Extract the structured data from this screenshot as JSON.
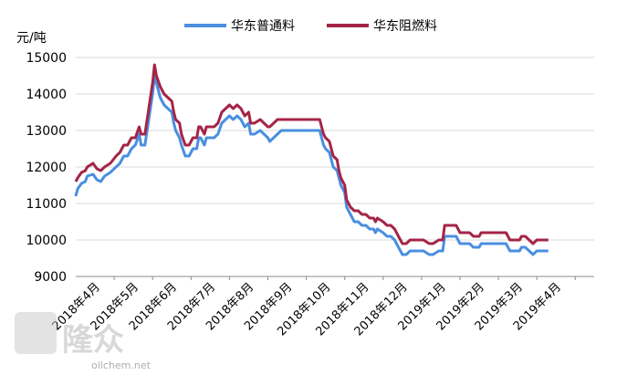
{
  "chart_data": {
    "type": "line",
    "title": "",
    "unit_label": "元/吨",
    "xlabel": "",
    "ylabel": "",
    "ylim": [
      9000,
      15000
    ],
    "y_ticks": [
      "15000",
      "14000",
      "13000",
      "12000",
      "11000",
      "10000",
      "9000"
    ],
    "x_categories": [
      "2018年4月",
      "2018年5月",
      "2018年6月",
      "2018年7月",
      "2018年8月",
      "2018年9月",
      "2018年10月",
      "2018年11月",
      "2018年12月",
      "2019年1月",
      "2019年2月",
      "2019年3月",
      "2019年4月"
    ],
    "grid": {
      "horizontal": true,
      "vertical": false
    },
    "legend_position": "top-center",
    "series": [
      {
        "name": "华东普通料",
        "color": "#4A8FE0",
        "points": [
          [
            0.0,
            11200
          ],
          [
            0.05,
            11400
          ],
          [
            0.15,
            11550
          ],
          [
            0.25,
            11600
          ],
          [
            0.3,
            11750
          ],
          [
            0.45,
            11800
          ],
          [
            0.55,
            11650
          ],
          [
            0.65,
            11600
          ],
          [
            0.75,
            11750
          ],
          [
            0.9,
            11850
          ],
          [
            1.05,
            12000
          ],
          [
            1.15,
            12100
          ],
          [
            1.25,
            12300
          ],
          [
            1.35,
            12300
          ],
          [
            1.45,
            12500
          ],
          [
            1.55,
            12600
          ],
          [
            1.65,
            12900
          ],
          [
            1.7,
            12600
          ],
          [
            1.8,
            12600
          ],
          [
            1.9,
            13300
          ],
          [
            2.0,
            14000
          ],
          [
            2.05,
            14500
          ],
          [
            2.1,
            14300
          ],
          [
            2.2,
            13900
          ],
          [
            2.3,
            13700
          ],
          [
            2.4,
            13600
          ],
          [
            2.5,
            13500
          ],
          [
            2.55,
            13200
          ],
          [
            2.6,
            13000
          ],
          [
            2.7,
            12800
          ],
          [
            2.75,
            12600
          ],
          [
            2.85,
            12300
          ],
          [
            2.95,
            12300
          ],
          [
            3.05,
            12500
          ],
          [
            3.15,
            12500
          ],
          [
            3.2,
            12800
          ],
          [
            3.25,
            12800
          ],
          [
            3.35,
            12600
          ],
          [
            3.4,
            12800
          ],
          [
            3.5,
            12800
          ],
          [
            3.6,
            12800
          ],
          [
            3.7,
            12900
          ],
          [
            3.8,
            13200
          ],
          [
            3.9,
            13300
          ],
          [
            4.0,
            13400
          ],
          [
            4.1,
            13300
          ],
          [
            4.2,
            13400
          ],
          [
            4.3,
            13300
          ],
          [
            4.4,
            13100
          ],
          [
            4.5,
            13200
          ],
          [
            4.55,
            12900
          ],
          [
            4.65,
            12900
          ],
          [
            4.8,
            13000
          ],
          [
            4.9,
            12900
          ],
          [
            5.0,
            12800
          ],
          [
            5.05,
            12700
          ],
          [
            5.15,
            12800
          ],
          [
            5.25,
            12900
          ],
          [
            5.35,
            13000
          ],
          [
            5.5,
            13000
          ],
          [
            5.65,
            13000
          ],
          [
            5.8,
            13000
          ],
          [
            5.95,
            13000
          ],
          [
            6.05,
            13000
          ],
          [
            6.2,
            13000
          ],
          [
            6.35,
            13000
          ],
          [
            6.45,
            12600
          ],
          [
            6.5,
            12500
          ],
          [
            6.6,
            12400
          ],
          [
            6.7,
            12000
          ],
          [
            6.8,
            11900
          ],
          [
            6.85,
            11700
          ],
          [
            6.9,
            11500
          ],
          [
            7.0,
            11300
          ],
          [
            7.05,
            10900
          ],
          [
            7.15,
            10700
          ],
          [
            7.25,
            10500
          ],
          [
            7.35,
            10500
          ],
          [
            7.45,
            10400
          ],
          [
            7.55,
            10400
          ],
          [
            7.65,
            10300
          ],
          [
            7.75,
            10300
          ],
          [
            7.8,
            10200
          ],
          [
            7.85,
            10300
          ],
          [
            8.0,
            10200
          ],
          [
            8.1,
            10100
          ],
          [
            8.2,
            10100
          ],
          [
            8.3,
            10000
          ],
          [
            8.4,
            9800
          ],
          [
            8.5,
            9600
          ],
          [
            8.6,
            9600
          ],
          [
            8.7,
            9700
          ],
          [
            8.9,
            9700
          ],
          [
            9.05,
            9700
          ],
          [
            9.2,
            9600
          ],
          [
            9.3,
            9600
          ],
          [
            9.45,
            9700
          ],
          [
            9.55,
            9700
          ],
          [
            9.6,
            10100
          ],
          [
            9.75,
            10100
          ],
          [
            9.9,
            10100
          ],
          [
            10.0,
            9900
          ],
          [
            10.1,
            9900
          ],
          [
            10.25,
            9900
          ],
          [
            10.35,
            9800
          ],
          [
            10.5,
            9800
          ],
          [
            10.55,
            9900
          ],
          [
            10.75,
            9900
          ],
          [
            10.9,
            9900
          ],
          [
            11.05,
            9900
          ],
          [
            11.2,
            9900
          ],
          [
            11.3,
            9700
          ],
          [
            11.45,
            9700
          ],
          [
            11.55,
            9700
          ],
          [
            11.6,
            9800
          ],
          [
            11.7,
            9800
          ],
          [
            11.8,
            9700
          ],
          [
            11.9,
            9600
          ],
          [
            12.0,
            9700
          ],
          [
            12.15,
            9700
          ],
          [
            12.3,
            9700
          ]
        ]
      },
      {
        "name": "华东阻燃料",
        "color": "#A42447",
        "points": [
          [
            0.0,
            11600
          ],
          [
            0.05,
            11700
          ],
          [
            0.15,
            11850
          ],
          [
            0.25,
            11900
          ],
          [
            0.3,
            12000
          ],
          [
            0.45,
            12100
          ],
          [
            0.55,
            11950
          ],
          [
            0.65,
            11900
          ],
          [
            0.75,
            12000
          ],
          [
            0.9,
            12100
          ],
          [
            1.05,
            12300
          ],
          [
            1.15,
            12400
          ],
          [
            1.25,
            12600
          ],
          [
            1.35,
            12600
          ],
          [
            1.45,
            12800
          ],
          [
            1.55,
            12800
          ],
          [
            1.65,
            13100
          ],
          [
            1.7,
            12900
          ],
          [
            1.8,
            12900
          ],
          [
            1.9,
            13600
          ],
          [
            2.0,
            14300
          ],
          [
            2.05,
            14800
          ],
          [
            2.1,
            14500
          ],
          [
            2.2,
            14200
          ],
          [
            2.3,
            14000
          ],
          [
            2.4,
            13900
          ],
          [
            2.5,
            13800
          ],
          [
            2.55,
            13500
          ],
          [
            2.6,
            13300
          ],
          [
            2.7,
            13200
          ],
          [
            2.75,
            12900
          ],
          [
            2.85,
            12600
          ],
          [
            2.95,
            12600
          ],
          [
            3.05,
            12800
          ],
          [
            3.15,
            12800
          ],
          [
            3.2,
            13100
          ],
          [
            3.25,
            13100
          ],
          [
            3.35,
            12900
          ],
          [
            3.4,
            13100
          ],
          [
            3.5,
            13100
          ],
          [
            3.6,
            13100
          ],
          [
            3.7,
            13200
          ],
          [
            3.8,
            13500
          ],
          [
            3.9,
            13600
          ],
          [
            4.0,
            13700
          ],
          [
            4.1,
            13600
          ],
          [
            4.2,
            13700
          ],
          [
            4.3,
            13600
          ],
          [
            4.4,
            13400
          ],
          [
            4.5,
            13500
          ],
          [
            4.55,
            13200
          ],
          [
            4.65,
            13200
          ],
          [
            4.8,
            13300
          ],
          [
            4.9,
            13200
          ],
          [
            5.0,
            13100
          ],
          [
            5.05,
            13100
          ],
          [
            5.15,
            13200
          ],
          [
            5.25,
            13300
          ],
          [
            5.35,
            13300
          ],
          [
            5.5,
            13300
          ],
          [
            5.65,
            13300
          ],
          [
            5.8,
            13300
          ],
          [
            5.95,
            13300
          ],
          [
            6.05,
            13300
          ],
          [
            6.2,
            13300
          ],
          [
            6.35,
            13300
          ],
          [
            6.45,
            12900
          ],
          [
            6.5,
            12800
          ],
          [
            6.6,
            12700
          ],
          [
            6.7,
            12300
          ],
          [
            6.8,
            12200
          ],
          [
            6.85,
            11900
          ],
          [
            6.9,
            11700
          ],
          [
            7.0,
            11500
          ],
          [
            7.05,
            11100
          ],
          [
            7.15,
            10900
          ],
          [
            7.25,
            10800
          ],
          [
            7.35,
            10800
          ],
          [
            7.45,
            10700
          ],
          [
            7.55,
            10700
          ],
          [
            7.65,
            10600
          ],
          [
            7.75,
            10600
          ],
          [
            7.8,
            10500
          ],
          [
            7.85,
            10600
          ],
          [
            8.0,
            10500
          ],
          [
            8.1,
            10400
          ],
          [
            8.2,
            10400
          ],
          [
            8.3,
            10300
          ],
          [
            8.4,
            10100
          ],
          [
            8.5,
            9900
          ],
          [
            8.6,
            9900
          ],
          [
            8.7,
            10000
          ],
          [
            8.9,
            10000
          ],
          [
            9.05,
            10000
          ],
          [
            9.2,
            9900
          ],
          [
            9.3,
            9900
          ],
          [
            9.45,
            10000
          ],
          [
            9.55,
            10000
          ],
          [
            9.6,
            10400
          ],
          [
            9.75,
            10400
          ],
          [
            9.9,
            10400
          ],
          [
            10.0,
            10200
          ],
          [
            10.1,
            10200
          ],
          [
            10.25,
            10200
          ],
          [
            10.35,
            10100
          ],
          [
            10.5,
            10100
          ],
          [
            10.55,
            10200
          ],
          [
            10.75,
            10200
          ],
          [
            10.9,
            10200
          ],
          [
            11.05,
            10200
          ],
          [
            11.2,
            10200
          ],
          [
            11.3,
            10000
          ],
          [
            11.45,
            10000
          ],
          [
            11.55,
            10000
          ],
          [
            11.6,
            10100
          ],
          [
            11.7,
            10100
          ],
          [
            11.8,
            10000
          ],
          [
            11.9,
            9900
          ],
          [
            12.0,
            10000
          ],
          [
            12.15,
            10000
          ],
          [
            12.3,
            10000
          ]
        ]
      }
    ]
  },
  "watermark": {
    "brand_text": "隆众",
    "url_text": "oilchem.net"
  }
}
